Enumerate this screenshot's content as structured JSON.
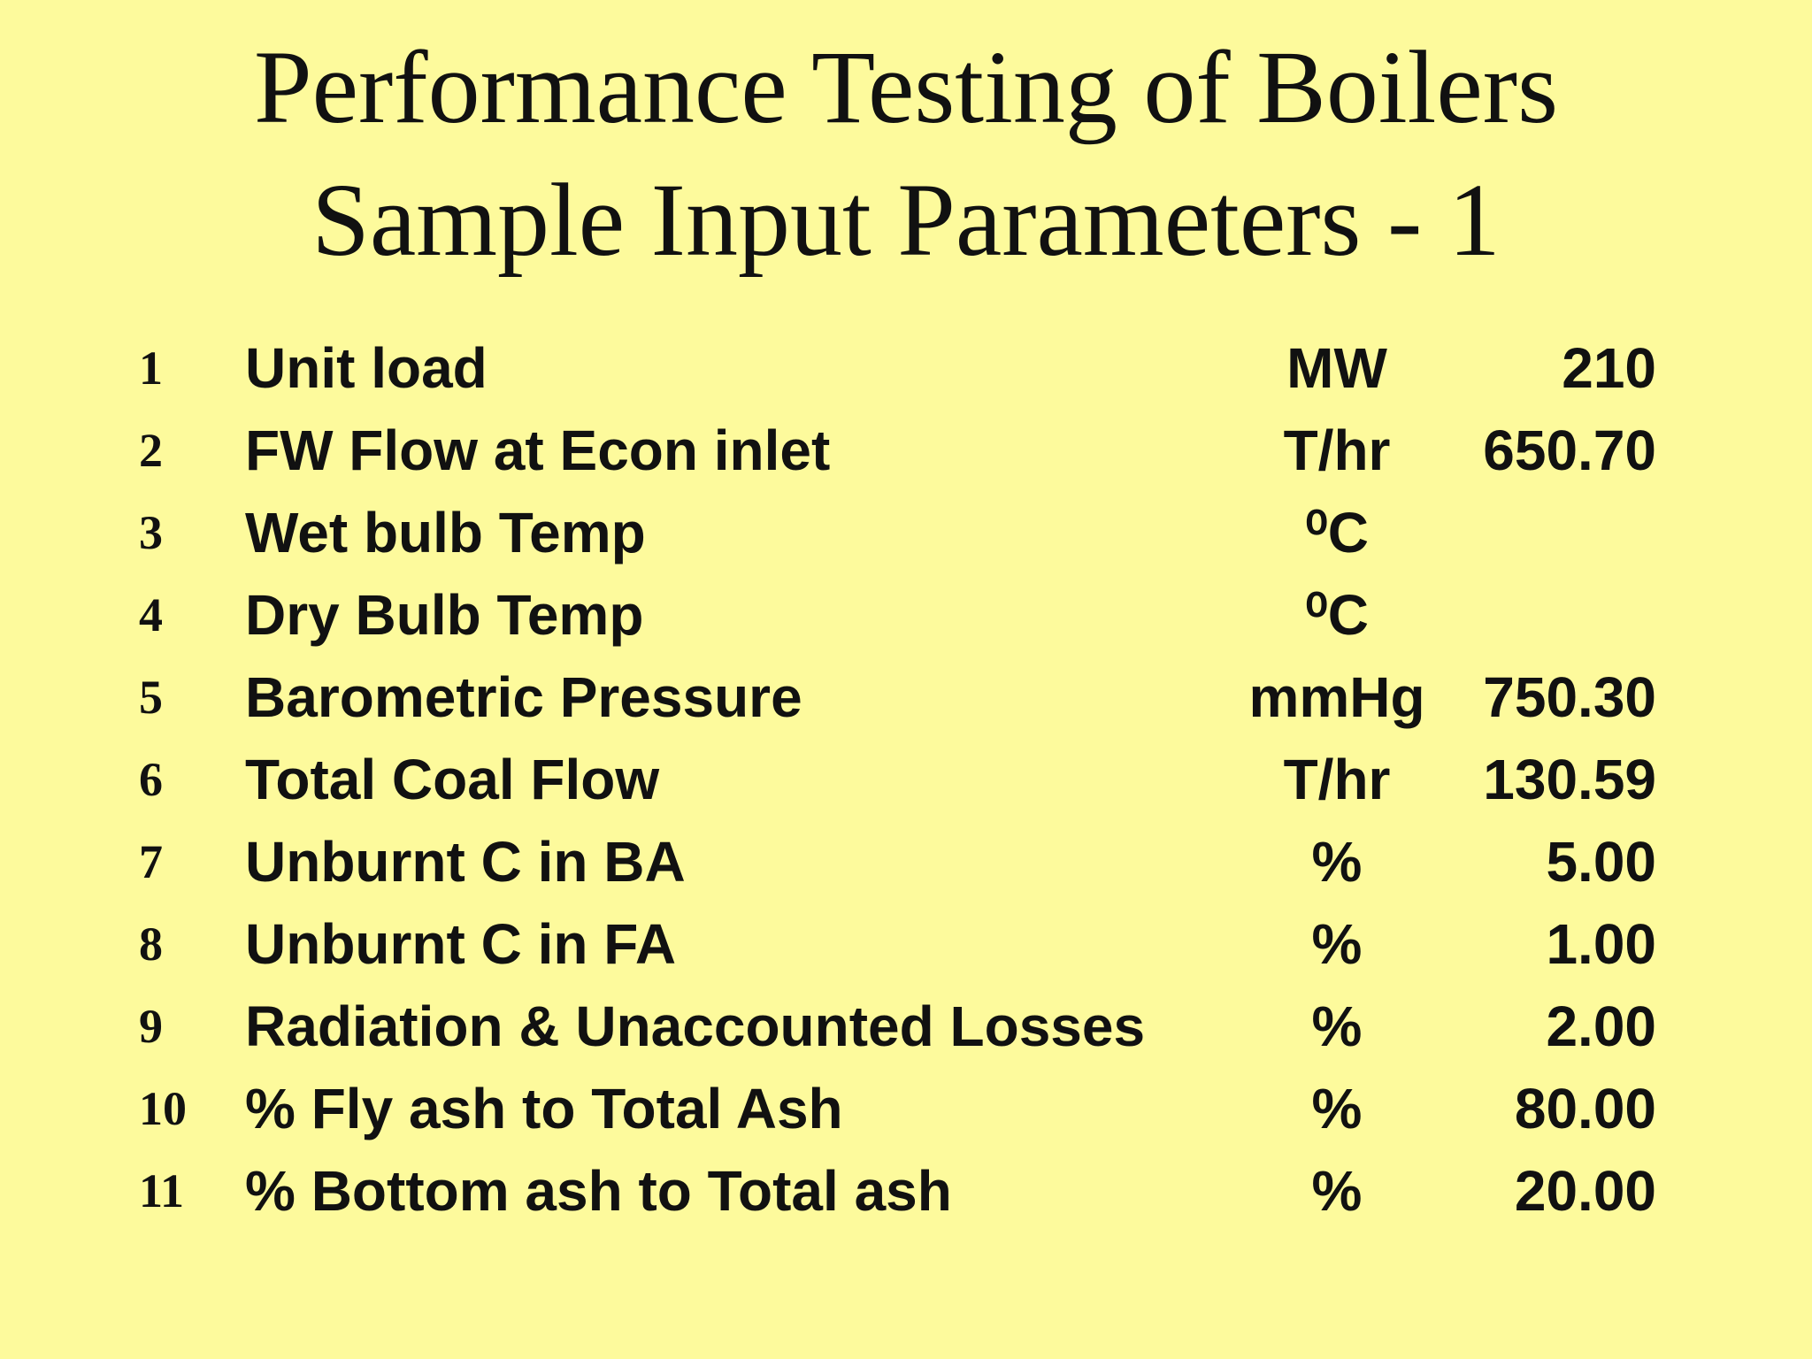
{
  "header": {
    "title_line1": "Performance Testing of Boilers",
    "title_line2": "Sample Input Parameters - 1"
  },
  "table": {
    "rows": [
      {
        "no": "1",
        "parameter": "Unit load",
        "unit": "MW",
        "value": "210"
      },
      {
        "no": "2",
        "parameter": "FW Flow at Econ inlet",
        "unit": "T/hr",
        "value": "650.70"
      },
      {
        "no": "3",
        "parameter": "Wet bulb Temp",
        "unit": "⁰C"
      },
      {
        "no": "4",
        "parameter": "Dry Bulb Temp",
        "unit": "⁰C"
      },
      {
        "no": "5",
        "parameter": "Barometric Pressure",
        "unit": "mmHg",
        "value": "750.30"
      },
      {
        "no": "6",
        "parameter": "Total Coal Flow",
        "unit": "T/hr",
        "value": "130.59"
      },
      {
        "no": "7",
        "parameter": "Unburnt C in BA",
        "unit": "%",
        "value": "5.00"
      },
      {
        "no": "8",
        "parameter": "Unburnt C in FA",
        "unit": "%",
        "value": "1.00"
      },
      {
        "no": "9",
        "parameter": "Radiation & Unaccounted Losses",
        "unit": "%",
        "value": "2.00"
      },
      {
        "no": "10",
        "parameter": "% Fly ash to Total Ash",
        "unit": "%",
        "value": "80.00"
      },
      {
        "no": "11",
        "parameter": "% Bottom ash to Total ash",
        "unit": "%",
        "value": "20.00"
      }
    ]
  }
}
